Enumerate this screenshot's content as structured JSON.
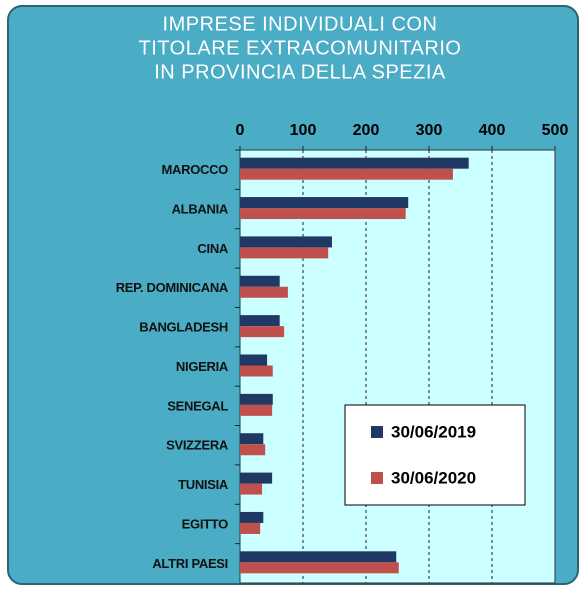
{
  "chart_data": {
    "type": "barh",
    "title": [
      "IMPRESE INDIVIDUALI CON",
      "TITOLARE EXTRACOMUNITARIO",
      "IN PROVINCIA DELLA SPEZIA"
    ],
    "categories": [
      "MAROCCO",
      "ALBANIA",
      "CINA",
      "REP. DOMINICANA",
      "BANGLADESH",
      "NIGERIA",
      "SENEGAL",
      "SVIZZERA",
      "TUNISIA",
      "EGITTO",
      "ALTRI PAESI"
    ],
    "series": [
      {
        "name": "30/06/2019",
        "color": "#1f3864",
        "values": [
          363,
          267,
          146,
          63,
          63,
          43,
          52,
          37,
          51,
          37,
          248
        ]
      },
      {
        "name": "30/06/2020",
        "color": "#c0504d",
        "values": [
          338,
          263,
          140,
          76,
          70,
          52,
          51,
          40,
          35,
          32,
          252
        ]
      }
    ],
    "xlim": [
      0,
      500
    ],
    "xticks": [
      0,
      100,
      200,
      300,
      400,
      500
    ],
    "grid": true,
    "legend": "lower right"
  }
}
